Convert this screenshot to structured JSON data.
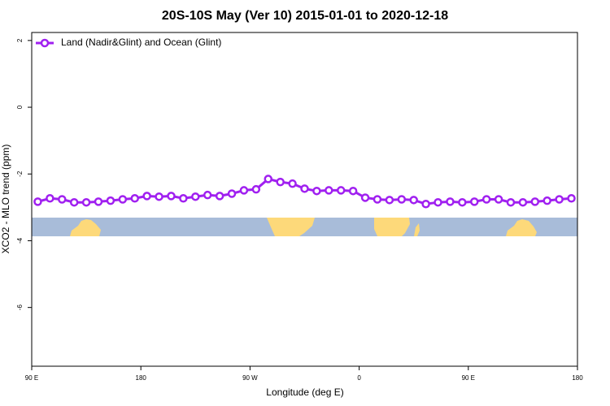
{
  "chart_data": {
    "type": "line",
    "title": "20S-10S May (Ver 10)   2015-01-01 to 2020-12-18",
    "x_label": "Longitude (deg E)",
    "y_label": "XCO2 - MLO trend (ppm)",
    "x": [
      95,
      105,
      115,
      125,
      135,
      145,
      155,
      165,
      175,
      185,
      195,
      205,
      215,
      225,
      235,
      245,
      255,
      265,
      275,
      285,
      295,
      305,
      315,
      325,
      335,
      345,
      355,
      365,
      375,
      385,
      395,
      405,
      415,
      425,
      435,
      445,
      455,
      465,
      475,
      485,
      495,
      505,
      515,
      525,
      535
    ],
    "series": [
      {
        "name": "Land (Nadir&Glint) and Ocean (Glint)",
        "color": "#a020f0",
        "values": [
          -2.83,
          -2.73,
          -2.76,
          -2.85,
          -2.85,
          -2.83,
          -2.8,
          -2.76,
          -2.73,
          -2.66,
          -2.68,
          -2.66,
          -2.73,
          -2.68,
          -2.63,
          -2.66,
          -2.59,
          -2.49,
          -2.46,
          -2.15,
          -2.24,
          -2.29,
          -2.44,
          -2.51,
          -2.49,
          -2.49,
          -2.51,
          -2.71,
          -2.76,
          -2.78,
          -2.76,
          -2.78,
          -2.9,
          -2.85,
          -2.83,
          -2.85,
          -2.83,
          -2.76,
          -2.76,
          -2.85,
          -2.85,
          -2.83,
          -2.8,
          -2.76,
          -2.73
        ]
      }
    ],
    "xlim": [
      90,
      540
    ],
    "xticks": [
      {
        "value": 90,
        "label": "90 E"
      },
      180,
      {
        "value": 270,
        "label": "90 W"
      },
      {
        "value": 360,
        "label": "0"
      },
      {
        "value": 450,
        "label": "90 E"
      },
      {
        "value": 540,
        "label": "180"
      }
    ],
    "ylim": [
      -7.76,
      2.24
    ],
    "yticks": [
      2,
      0,
      -2,
      -4,
      -6
    ],
    "legend": "topleft"
  }
}
